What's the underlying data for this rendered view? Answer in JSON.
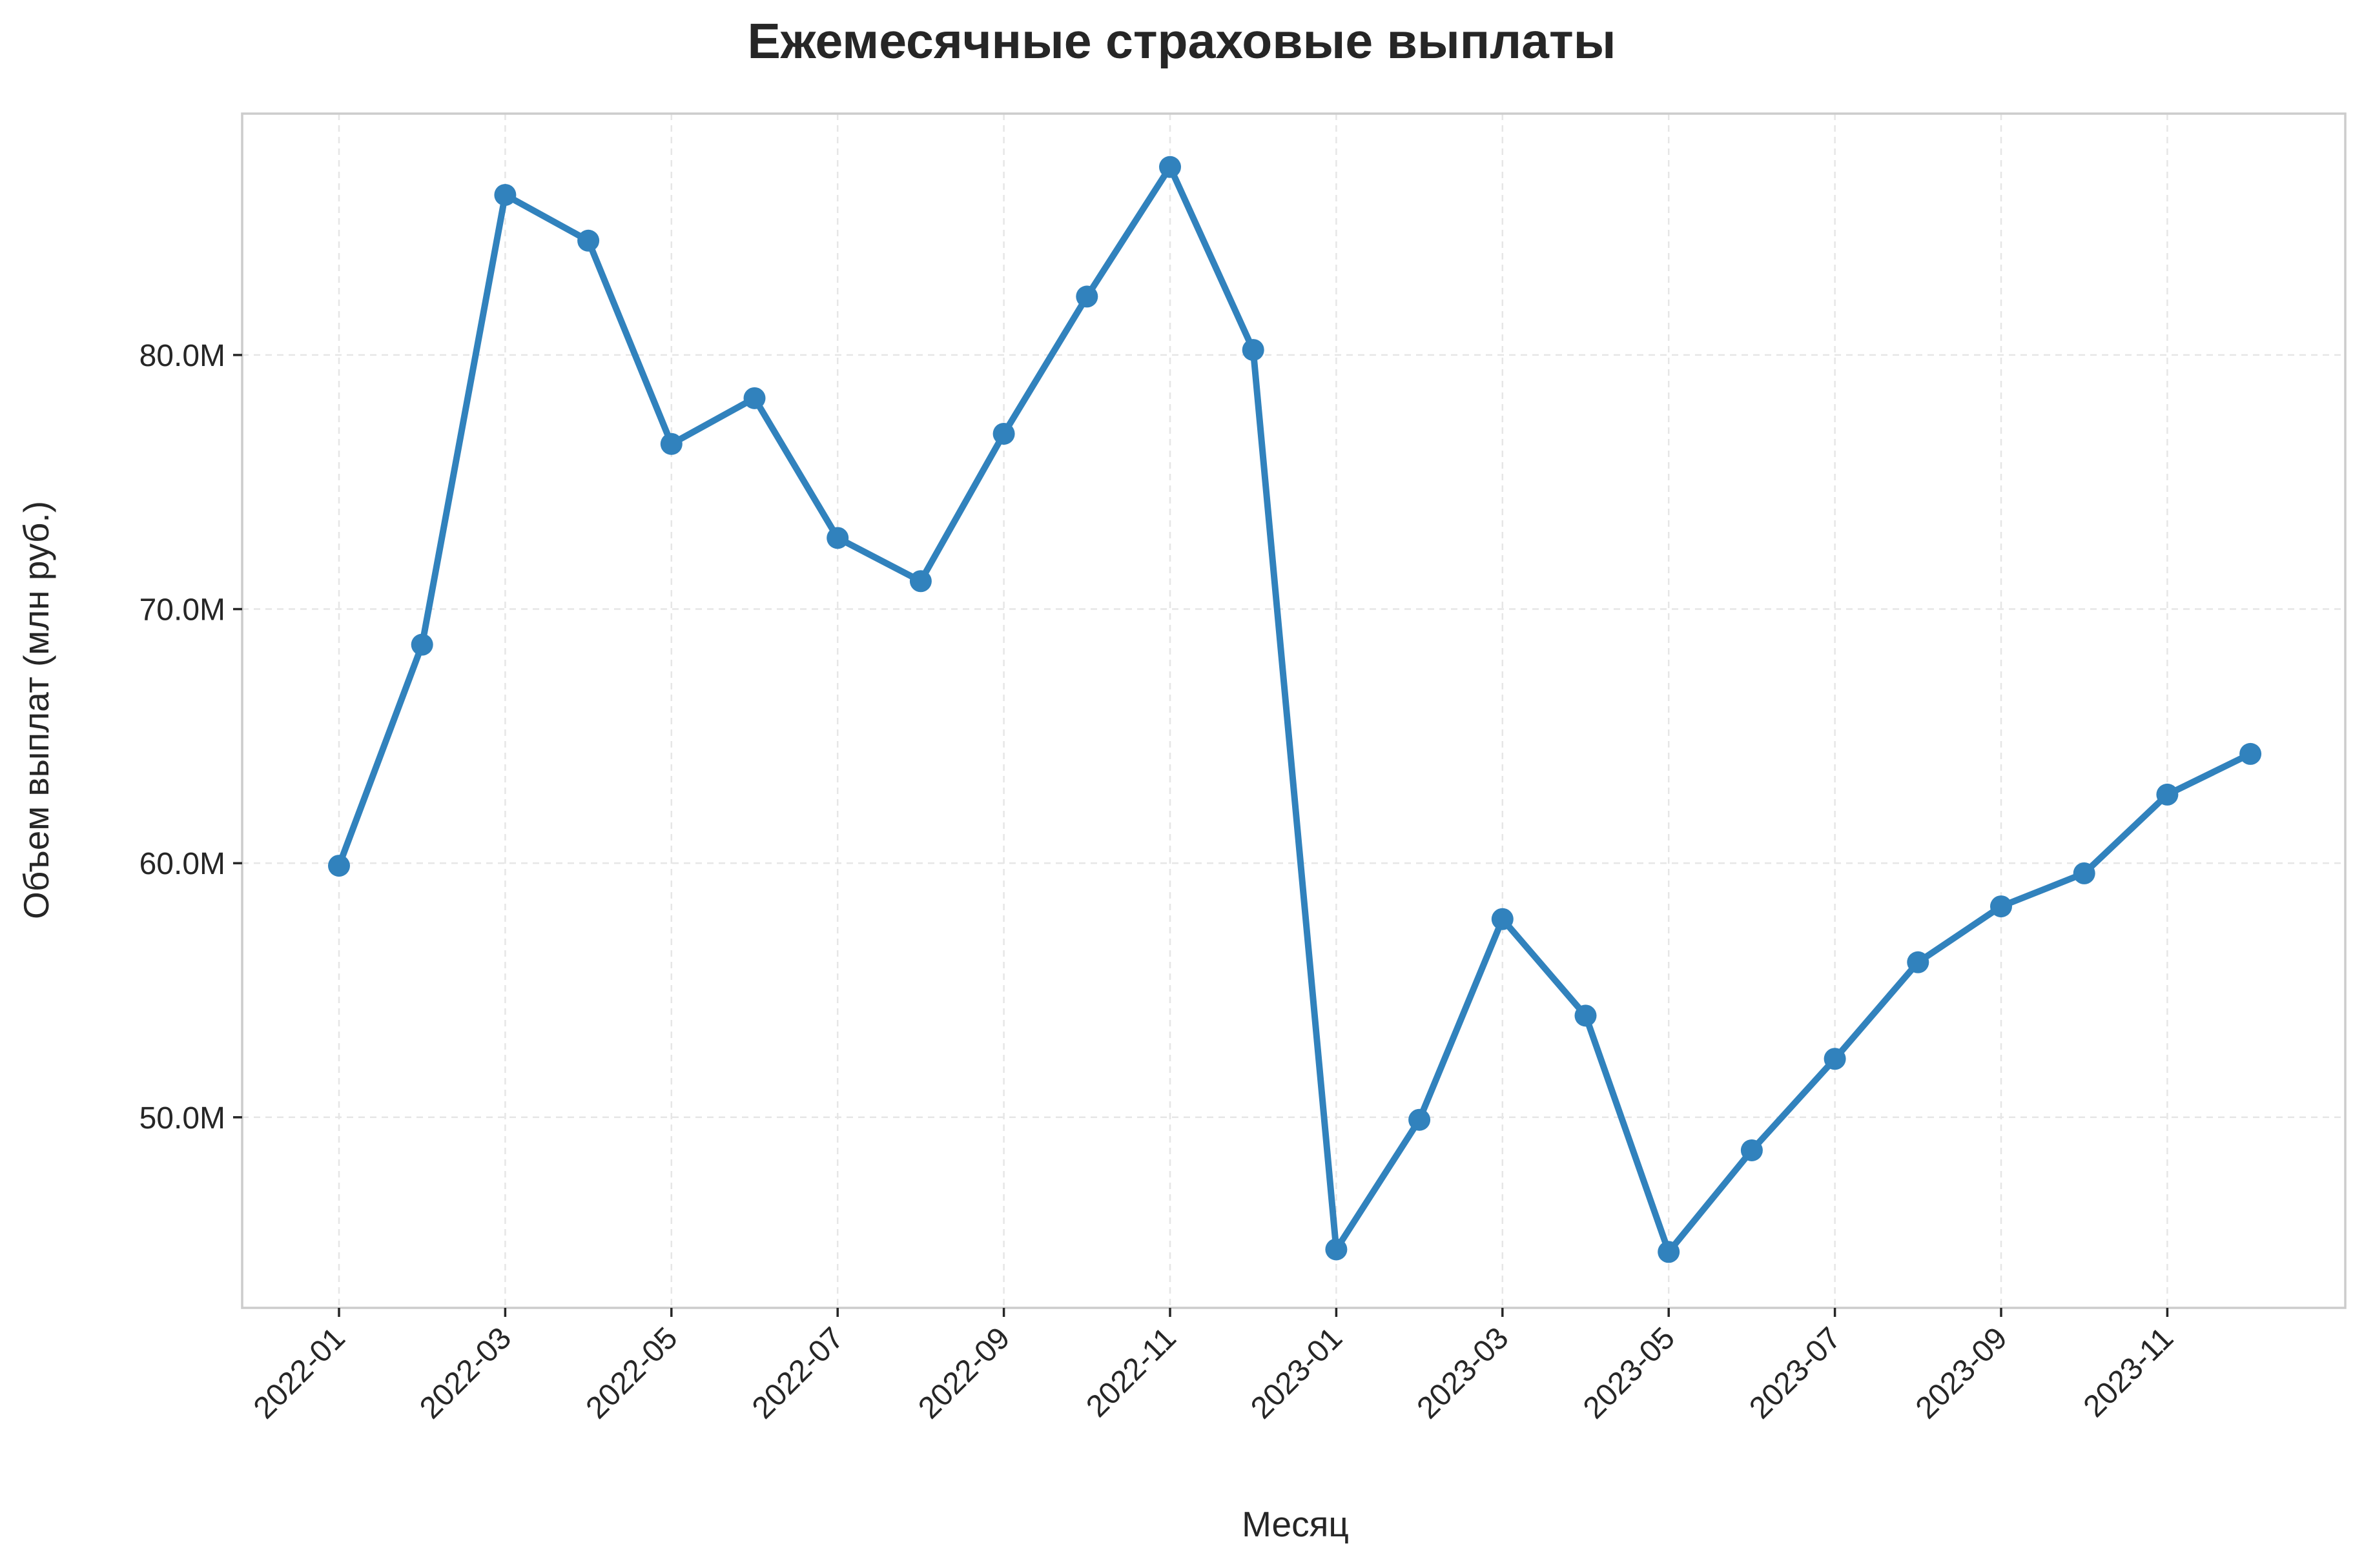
{
  "chart_data": {
    "type": "line",
    "title": "Ежемесячные страховые выплаты",
    "xlabel": "Месяц",
    "ylabel": "Объем выплат (млн руб.)",
    "x": [
      "2022-01",
      "2022-02",
      "2022-03",
      "2022-04",
      "2022-05",
      "2022-06",
      "2022-07",
      "2022-08",
      "2022-09",
      "2022-10",
      "2022-11",
      "2022-12",
      "2023-01",
      "2023-02",
      "2023-03",
      "2023-04",
      "2023-05",
      "2023-06",
      "2023-07",
      "2023-08",
      "2023-09",
      "2023-10",
      "2023-11",
      "2023-12"
    ],
    "series": [
      {
        "values": [
          59.9,
          68.6,
          86.3,
          84.5,
          76.5,
          78.3,
          72.8,
          71.1,
          76.9,
          82.3,
          87.4,
          80.2,
          44.8,
          49.9,
          57.8,
          54.0,
          44.7,
          48.7,
          52.3,
          56.1,
          58.3,
          59.6,
          62.7,
          64.3
        ],
        "color": "#3182bd"
      }
    ],
    "x_ticks": [
      "2022-01",
      "2022-03",
      "2022-05",
      "2022-07",
      "2022-09",
      "2022-11",
      "2023-01",
      "2023-03",
      "2023-05",
      "2023-07",
      "2023-09",
      "2023-11"
    ],
    "y_ticks": [
      50,
      60,
      70,
      80
    ],
    "y_tick_labels": [
      "50.0M",
      "60.0M",
      "70.0M",
      "80.0M"
    ],
    "ylim": [
      42.5,
      89.5
    ],
    "grid": true,
    "marker": "circle"
  }
}
